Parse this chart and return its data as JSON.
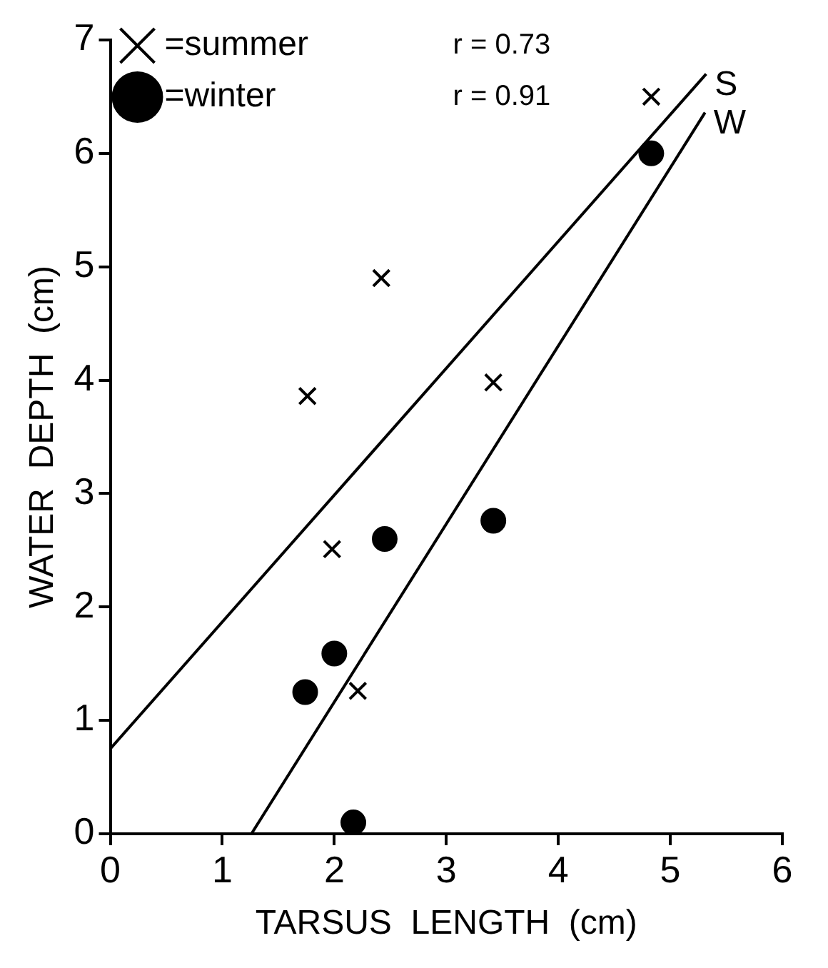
{
  "chart_data": {
    "type": "scatter",
    "xlabel": "TARSUS  LENGTH  (cm)",
    "ylabel": "WATER  DEPTH  (cm)",
    "xlim": [
      0,
      6
    ],
    "xticks": [
      0,
      1,
      2,
      3,
      4,
      5,
      6
    ],
    "ylim": [
      0,
      7
    ],
    "yticks": [
      0,
      1,
      2,
      3,
      4,
      5,
      6,
      7
    ],
    "grid": false,
    "legend": "top left",
    "annotations": [
      "r = 0.73",
      "r = 0.91",
      {
        "text": "S",
        "x": 5.32,
        "y": 6.7
      },
      {
        "text": "W",
        "x": 5.31,
        "y": 6.36
      }
    ],
    "series": [
      {
        "name": "=summer",
        "color": "#000000",
        "marker": "cross",
        "x": [
          4.83,
          2.42,
          1.76,
          3.42,
          1.98,
          2.21
        ],
        "values": [
          6.5,
          4.9,
          3.86,
          3.98,
          2.51,
          1.26
        ]
      },
      {
        "name": "=winter",
        "color": "#000000",
        "marker": "circle",
        "x": [
          4.83,
          2.45,
          3.42,
          2.0,
          1.74,
          2.17
        ],
        "values": [
          6.0,
          2.6,
          2.76,
          1.59,
          1.25,
          0.1
        ]
      },
      {
        "type": "line",
        "color": "#000000",
        "marker": "none",
        "x": [
          0,
          5.32
        ],
        "values": [
          0.75,
          6.7
        ]
      },
      {
        "type": "line",
        "color": "#000000",
        "marker": "none",
        "x": [
          1.26,
          5.31
        ],
        "values": [
          0,
          6.36
        ]
      }
    ]
  }
}
